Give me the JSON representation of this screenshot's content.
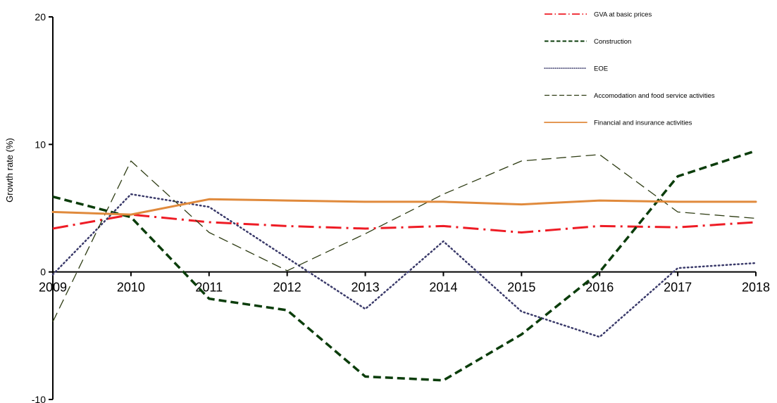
{
  "chart_data": {
    "type": "line",
    "x": [
      "2009",
      "2010",
      "2011",
      "2012",
      "2013",
      "2014",
      "2015",
      "2016",
      "2017",
      "2018"
    ],
    "ylabel": "Growth rate (%)",
    "ylim": [
      -10,
      20
    ],
    "yticks": [
      -10,
      0,
      10,
      20
    ],
    "grid": false,
    "legend": "top-right",
    "series": [
      {
        "name": "GVA at basic prices",
        "color": "#ee1c25",
        "dash": "dash-dot",
        "values": [
          3.4,
          4.5,
          3.9,
          3.6,
          3.4,
          3.6,
          3.1,
          3.6,
          3.5,
          3.9
        ]
      },
      {
        "name": "Construction",
        "color": "#0b3d0b",
        "dash": "dashed-bold",
        "values": [
          5.9,
          4.3,
          -2.1,
          -3.0,
          -8.2,
          -8.5,
          -4.9,
          0.0,
          7.5,
          9.5
        ]
      },
      {
        "name": "EOE",
        "color": "#3a3a6a",
        "dash": "dotted",
        "values": [
          -0.2,
          6.1,
          5.1,
          1.1,
          -2.9,
          2.4,
          -3.1,
          -5.1,
          0.3,
          0.7
        ]
      },
      {
        "name": "Accomodation and food service activities",
        "color": "#2d3b12",
        "dash": "long-dash",
        "values": [
          -3.9,
          8.7,
          3.1,
          0.1,
          3.0,
          6.1,
          8.7,
          9.2,
          4.7,
          4.2
        ]
      },
      {
        "name": "Financial and insurance activities",
        "color": "#e08a3c",
        "dash": "solid",
        "values": [
          4.7,
          4.5,
          5.7,
          5.6,
          5.5,
          5.5,
          5.3,
          5.6,
          5.5,
          5.5
        ]
      }
    ]
  }
}
